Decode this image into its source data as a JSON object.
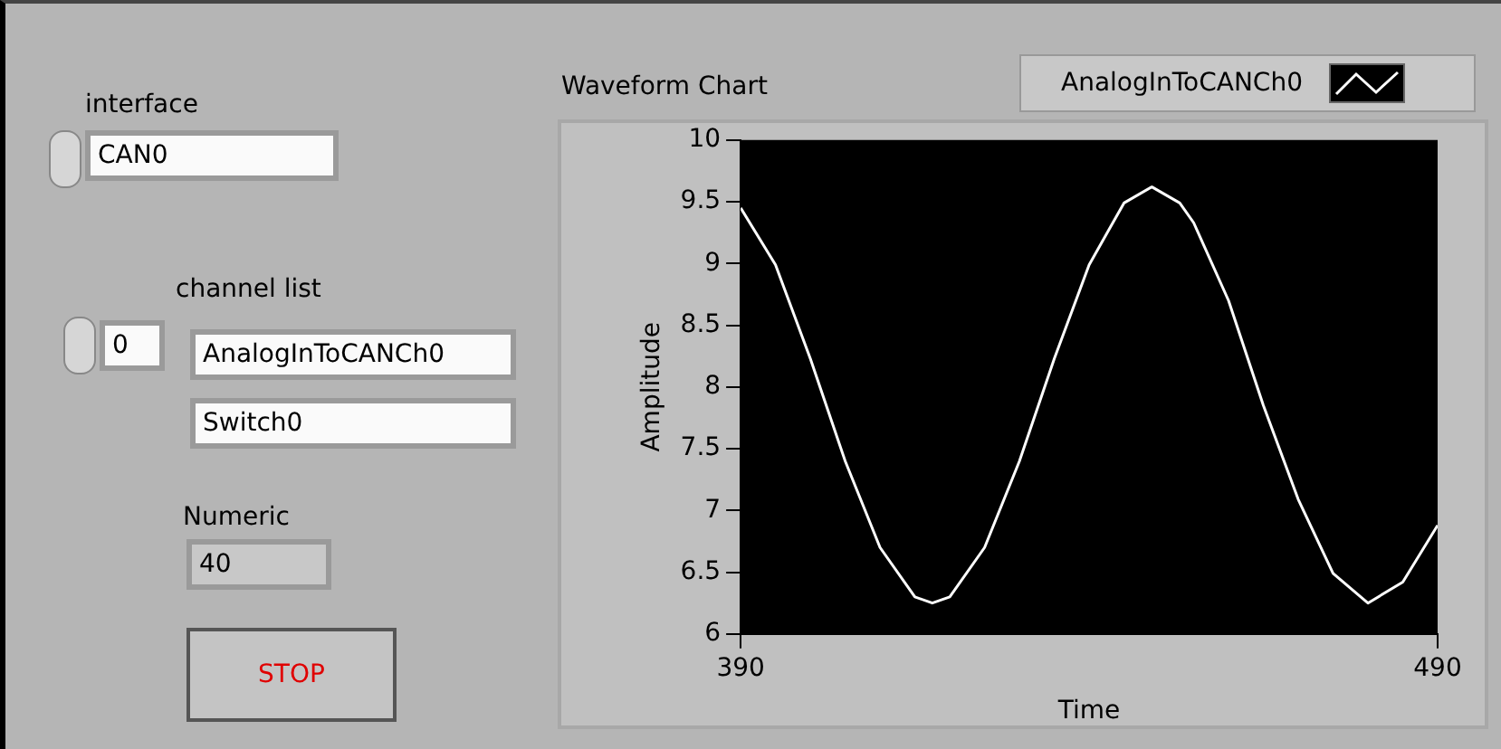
{
  "chart_data": [
    {
      "type": "other",
      "annotations": [
        "interface",
        "CAN0",
        "channel list",
        "0",
        "AnalogInToCANCh0",
        "Switch0",
        "Numeric",
        "40",
        "STOP"
      ]
    },
    {
      "type": "line",
      "title": "Waveform Chart",
      "xlabel": "Time",
      "ylabel": "Amplitude",
      "x": [
        390,
        395,
        400,
        405,
        410,
        415,
        417.5,
        420,
        425,
        430,
        435,
        440,
        445,
        449,
        453,
        455,
        460,
        465,
        470,
        475,
        480,
        485,
        490
      ],
      "series": [
        {
          "name": "AnalogInToCANCh0",
          "color": "#ffffff",
          "values": [
            9.45,
            8.99,
            8.23,
            7.4,
            6.7,
            6.3,
            6.25,
            6.3,
            6.7,
            7.4,
            8.23,
            8.99,
            9.49,
            9.62,
            9.49,
            9.33,
            8.7,
            7.85,
            7.09,
            6.49,
            6.25,
            6.42,
            6.88
          ]
        }
      ],
      "xlim": [
        390,
        490
      ],
      "xticks": [
        390,
        490
      ],
      "ylim": [
        6,
        10
      ],
      "yticks": [
        6,
        6.5,
        7,
        7.5,
        8,
        8.5,
        9,
        9.5,
        10
      ],
      "legend": "top right",
      "grid": false,
      "marker": "none",
      "line_style": "solid"
    }
  ]
}
